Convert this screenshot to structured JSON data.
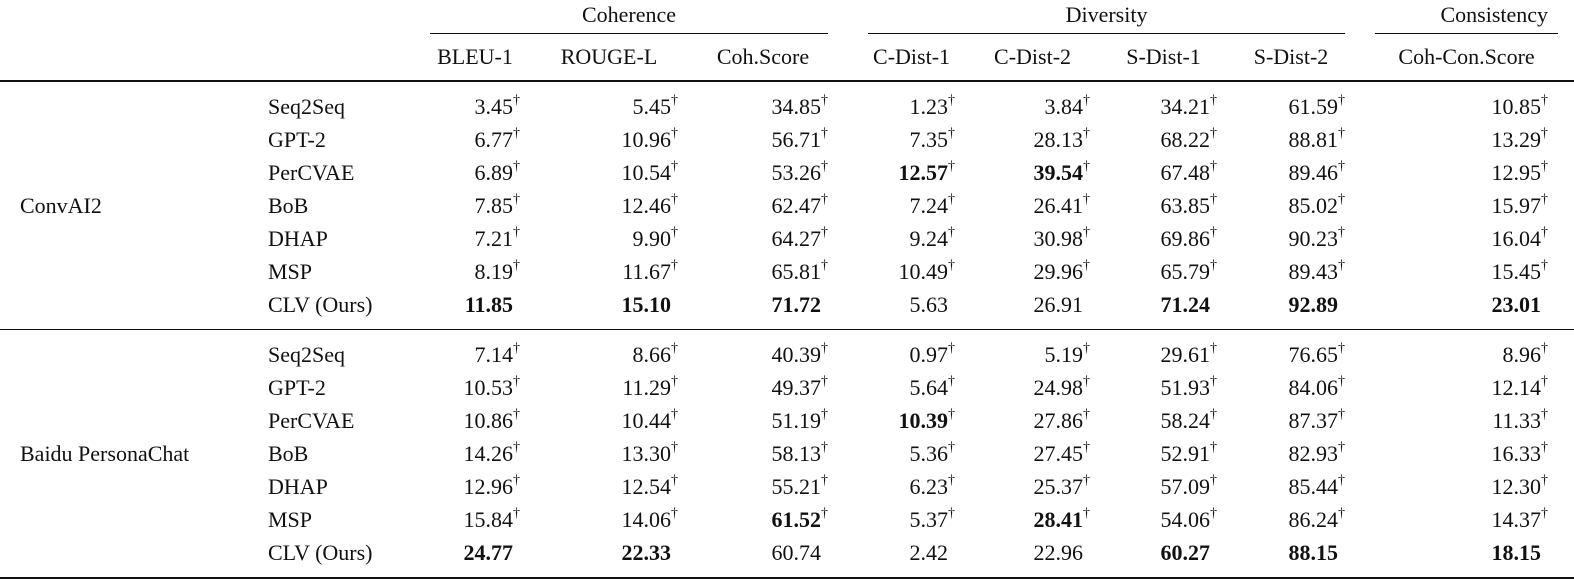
{
  "groups": {
    "coherence": "Coherence",
    "diversity": "Diversity",
    "consistency": "Consistency"
  },
  "columns": [
    "BLEU-1",
    "ROUGE-L",
    "Coh.Score",
    "C-Dist-1",
    "C-Dist-2",
    "S-Dist-1",
    "S-Dist-2",
    "Coh-Con.Score"
  ],
  "dagger": "†",
  "datasets": [
    {
      "name": "ConvAI2",
      "rows": [
        {
          "model": "Seq2Seq",
          "cells": [
            {
              "v": "3.45",
              "sig": true
            },
            {
              "v": "5.45",
              "sig": true
            },
            {
              "v": "34.85",
              "sig": true
            },
            {
              "v": "1.23",
              "sig": true
            },
            {
              "v": "3.84",
              "sig": true
            },
            {
              "v": "34.21",
              "sig": true
            },
            {
              "v": "61.59",
              "sig": true
            },
            {
              "v": "10.85",
              "sig": true
            }
          ]
        },
        {
          "model": "GPT-2",
          "cells": [
            {
              "v": "6.77",
              "sig": true
            },
            {
              "v": "10.96",
              "sig": true
            },
            {
              "v": "56.71",
              "sig": true
            },
            {
              "v": "7.35",
              "sig": true
            },
            {
              "v": "28.13",
              "sig": true
            },
            {
              "v": "68.22",
              "sig": true
            },
            {
              "v": "88.81",
              "sig": true
            },
            {
              "v": "13.29",
              "sig": true
            }
          ]
        },
        {
          "model": "PerCVAE",
          "cells": [
            {
              "v": "6.89",
              "sig": true
            },
            {
              "v": "10.54",
              "sig": true
            },
            {
              "v": "53.26",
              "sig": true
            },
            {
              "v": "12.57",
              "sig": true,
              "bold": true
            },
            {
              "v": "39.54",
              "sig": true,
              "bold": true
            },
            {
              "v": "67.48",
              "sig": true
            },
            {
              "v": "89.46",
              "sig": true
            },
            {
              "v": "12.95",
              "sig": true
            }
          ]
        },
        {
          "model": "BoB",
          "cells": [
            {
              "v": "7.85",
              "sig": true
            },
            {
              "v": "12.46",
              "sig": true
            },
            {
              "v": "62.47",
              "sig": true
            },
            {
              "v": "7.24",
              "sig": true
            },
            {
              "v": "26.41",
              "sig": true
            },
            {
              "v": "63.85",
              "sig": true
            },
            {
              "v": "85.02",
              "sig": true
            },
            {
              "v": "15.97",
              "sig": true
            }
          ]
        },
        {
          "model": "DHAP",
          "cells": [
            {
              "v": "7.21",
              "sig": true
            },
            {
              "v": "9.90",
              "sig": true
            },
            {
              "v": "64.27",
              "sig": true
            },
            {
              "v": "9.24",
              "sig": true
            },
            {
              "v": "30.98",
              "sig": true
            },
            {
              "v": "69.86",
              "sig": true
            },
            {
              "v": "90.23",
              "sig": true
            },
            {
              "v": "16.04",
              "sig": true
            }
          ]
        },
        {
          "model": "MSP",
          "cells": [
            {
              "v": "8.19",
              "sig": true
            },
            {
              "v": "11.67",
              "sig": true
            },
            {
              "v": "65.81",
              "sig": true
            },
            {
              "v": "10.49",
              "sig": true
            },
            {
              "v": "29.96",
              "sig": true
            },
            {
              "v": "65.79",
              "sig": true
            },
            {
              "v": "89.43",
              "sig": true
            },
            {
              "v": "15.45",
              "sig": true
            }
          ]
        },
        {
          "model": "CLV (Ours)",
          "cells": [
            {
              "v": "11.85",
              "bold": true
            },
            {
              "v": "15.10",
              "bold": true
            },
            {
              "v": "71.72",
              "bold": true
            },
            {
              "v": "5.63"
            },
            {
              "v": "26.91"
            },
            {
              "v": "71.24",
              "bold": true
            },
            {
              "v": "92.89",
              "bold": true
            },
            {
              "v": "23.01",
              "bold": true
            }
          ]
        }
      ]
    },
    {
      "name": "Baidu PersonaChat",
      "rows": [
        {
          "model": "Seq2Seq",
          "cells": [
            {
              "v": "7.14",
              "sig": true
            },
            {
              "v": "8.66",
              "sig": true
            },
            {
              "v": "40.39",
              "sig": true
            },
            {
              "v": "0.97",
              "sig": true
            },
            {
              "v": "5.19",
              "sig": true
            },
            {
              "v": "29.61",
              "sig": true
            },
            {
              "v": "76.65",
              "sig": true
            },
            {
              "v": "8.96",
              "sig": true
            }
          ]
        },
        {
          "model": "GPT-2",
          "cells": [
            {
              "v": "10.53",
              "sig": true
            },
            {
              "v": "11.29",
              "sig": true
            },
            {
              "v": "49.37",
              "sig": true
            },
            {
              "v": "5.64",
              "sig": true
            },
            {
              "v": "24.98",
              "sig": true
            },
            {
              "v": "51.93",
              "sig": true
            },
            {
              "v": "84.06",
              "sig": true
            },
            {
              "v": "12.14",
              "sig": true
            }
          ]
        },
        {
          "model": "PerCVAE",
          "cells": [
            {
              "v": "10.86",
              "sig": true
            },
            {
              "v": "10.44",
              "sig": true
            },
            {
              "v": "51.19",
              "sig": true
            },
            {
              "v": "10.39",
              "sig": true,
              "bold": true
            },
            {
              "v": "27.86",
              "sig": true
            },
            {
              "v": "58.24",
              "sig": true
            },
            {
              "v": "87.37",
              "sig": true
            },
            {
              "v": "11.33",
              "sig": true
            }
          ]
        },
        {
          "model": "BoB",
          "cells": [
            {
              "v": "14.26",
              "sig": true
            },
            {
              "v": "13.30",
              "sig": true
            },
            {
              "v": "58.13",
              "sig": true
            },
            {
              "v": "5.36",
              "sig": true
            },
            {
              "v": "27.45",
              "sig": true
            },
            {
              "v": "52.91",
              "sig": true
            },
            {
              "v": "82.93",
              "sig": true
            },
            {
              "v": "16.33",
              "sig": true
            }
          ]
        },
        {
          "model": "DHAP",
          "cells": [
            {
              "v": "12.96",
              "sig": true
            },
            {
              "v": "12.54",
              "sig": true
            },
            {
              "v": "55.21",
              "sig": true
            },
            {
              "v": "6.23",
              "sig": true
            },
            {
              "v": "25.37",
              "sig": true
            },
            {
              "v": "57.09",
              "sig": true
            },
            {
              "v": "85.44",
              "sig": true
            },
            {
              "v": "12.30",
              "sig": true
            }
          ]
        },
        {
          "model": "MSP",
          "cells": [
            {
              "v": "15.84",
              "sig": true
            },
            {
              "v": "14.06",
              "sig": true
            },
            {
              "v": "61.52",
              "sig": true,
              "bold": true
            },
            {
              "v": "5.37",
              "sig": true
            },
            {
              "v": "28.41",
              "sig": true,
              "bold": true
            },
            {
              "v": "54.06",
              "sig": true
            },
            {
              "v": "86.24",
              "sig": true
            },
            {
              "v": "14.37",
              "sig": true
            }
          ]
        },
        {
          "model": "CLV (Ours)",
          "cells": [
            {
              "v": "24.77",
              "bold": true
            },
            {
              "v": "22.33",
              "bold": true
            },
            {
              "v": "60.74"
            },
            {
              "v": "2.42"
            },
            {
              "v": "22.96"
            },
            {
              "v": "60.27",
              "bold": true
            },
            {
              "v": "88.15",
              "bold": true
            },
            {
              "v": "18.15",
              "bold": true
            }
          ]
        }
      ]
    }
  ]
}
